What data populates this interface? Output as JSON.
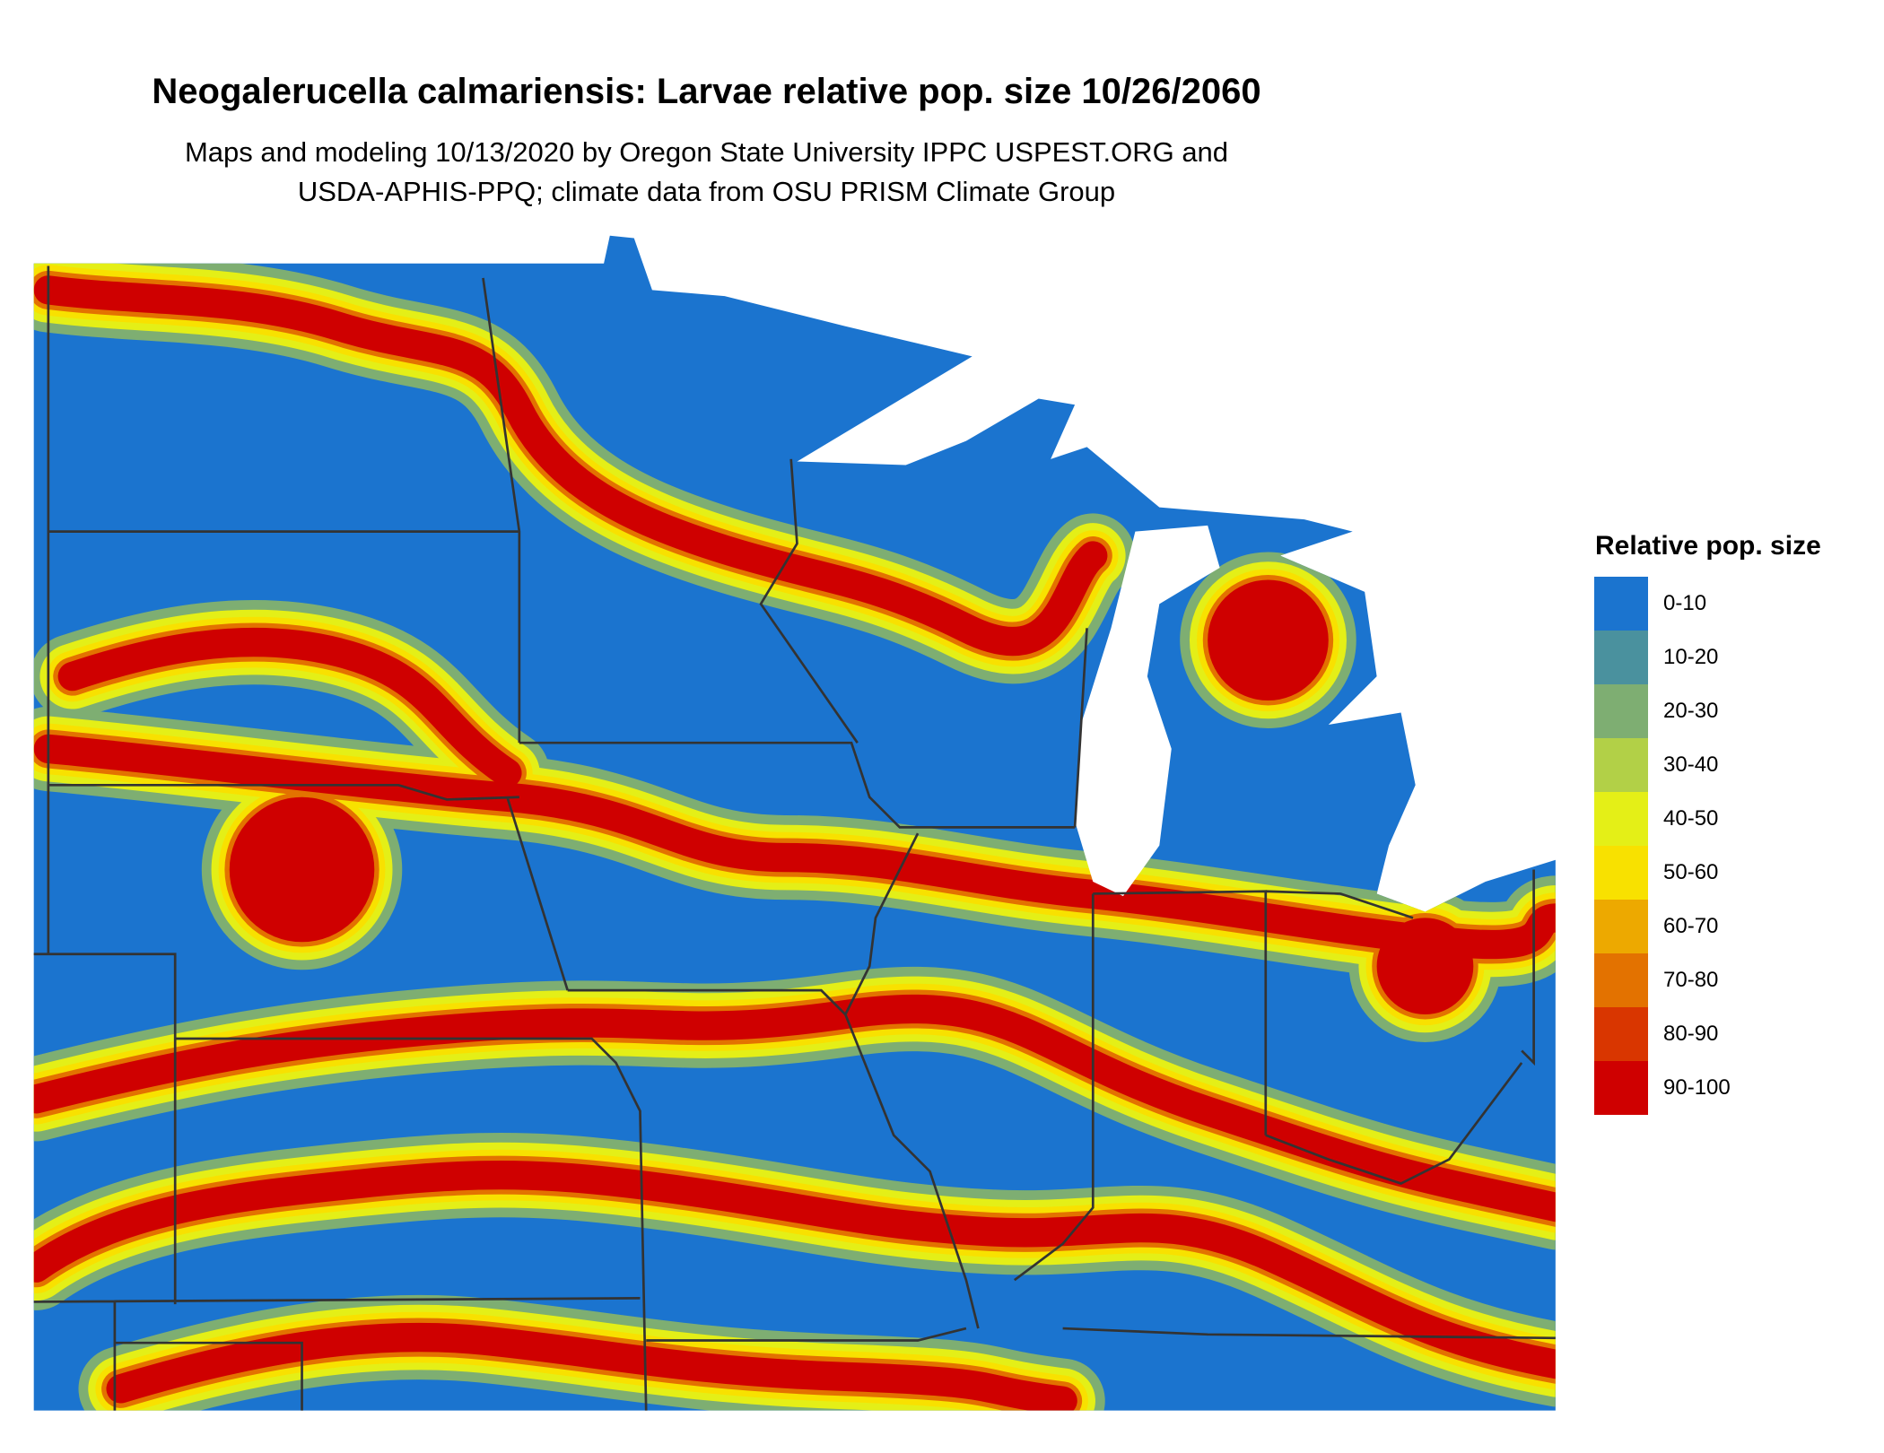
{
  "title": "Neogalerucella calmariensis: Larvae relative pop. size 10/26/2060",
  "subtitle_lines": [
    "Maps and modeling 10/13/2020 by Oregon State University IPPC USPEST.ORG and",
    "USDA-APHIS-PPQ; climate data from OSU PRISM Climate Group"
  ],
  "legend": {
    "title": "Relative pop. size",
    "items": [
      {
        "label": "0-10",
        "color": "#1b74cf"
      },
      {
        "label": "10-20",
        "color": "#4a919e"
      },
      {
        "label": "20-30",
        "color": "#7eae72"
      },
      {
        "label": "30-40",
        "color": "#b2d047"
      },
      {
        "label": "40-50",
        "color": "#e4ef17"
      },
      {
        "label": "50-60",
        "color": "#f8e100"
      },
      {
        "label": "60-70",
        "color": "#eda900"
      },
      {
        "label": "70-80",
        "color": "#e37200"
      },
      {
        "label": "80-90",
        "color": "#d93600"
      },
      {
        "label": "90-100",
        "color": "#cf0000"
      }
    ]
  },
  "map": {
    "region": "Upper Midwest United States",
    "water_color": "#ffffff",
    "border_color": "#333333"
  }
}
